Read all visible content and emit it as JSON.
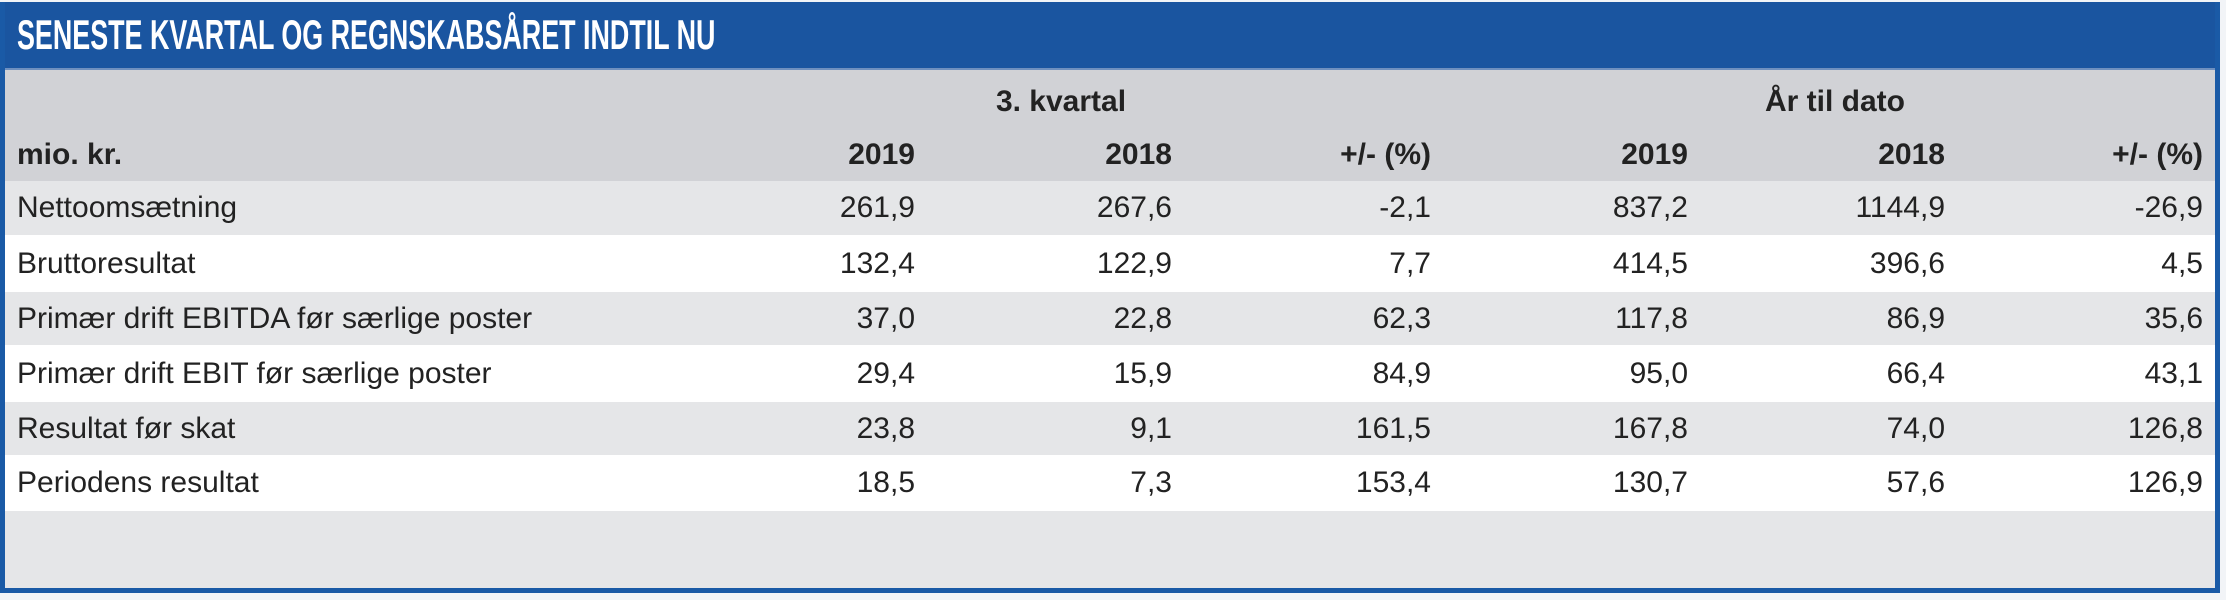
{
  "title": "SENESTE KVARTAL OG REGNSKABSÅRET INDTIL NU",
  "groups": [
    {
      "label": "3. kvartal"
    },
    {
      "label": "År til dato"
    }
  ],
  "columns": {
    "unit_label": "mio. kr.",
    "headers": [
      "2019",
      "2018",
      "+/- (%)",
      "2019",
      "2018",
      "+/- (%)"
    ]
  },
  "rows": [
    {
      "label": "Nettoomsætning",
      "values": [
        "261,9",
        "267,6",
        "-2,1",
        "837,2",
        "1144,9",
        "-26,9"
      ]
    },
    {
      "label": "Bruttoresultat",
      "values": [
        "132,4",
        "122,9",
        "7,7",
        "414,5",
        "396,6",
        "4,5"
      ]
    },
    {
      "label": "Primær drift EBITDA før særlige poster",
      "values": [
        "37,0",
        "22,8",
        "62,3",
        "117,8",
        "86,9",
        "35,6"
      ]
    },
    {
      "label": "Primær drift EBIT før særlige poster",
      "values": [
        "29,4",
        "15,9",
        "84,9",
        "95,0",
        "66,4",
        "43,1"
      ]
    },
    {
      "label": "Resultat før skat",
      "values": [
        "23,8",
        "9,1",
        "161,5",
        "167,8",
        "74,0",
        "126,8"
      ]
    },
    {
      "label": "Periodens resultat",
      "values": [
        "18,5",
        "7,3",
        "153,4",
        "130,7",
        "57,6",
        "126,9"
      ]
    }
  ],
  "colors": {
    "title_bar": "#1a55a0",
    "border": "#1a5aa6",
    "header_bg": "#d1d2d6",
    "row_grey": "#e5e6e8",
    "row_white": "#ffffff"
  }
}
